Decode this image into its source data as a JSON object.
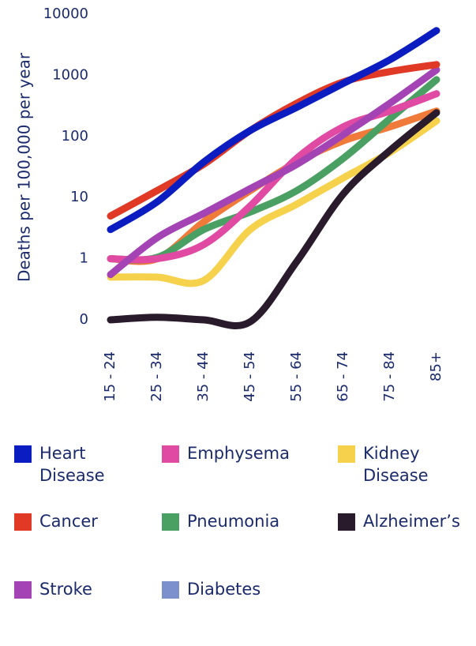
{
  "chart_data": {
    "type": "line",
    "y_label": "Deaths per 100,000 per year",
    "log_scale": true,
    "categories": [
      "15 - 24",
      "25 - 34",
      "35 - 44",
      "45 - 54",
      "55 - 64",
      "65 - 74",
      "75 - 84",
      "85+"
    ],
    "ylim": [
      0.1,
      10000
    ],
    "yticks": [
      {
        "value": 0.1,
        "label": "0"
      },
      1,
      10,
      100,
      1000,
      10000
    ],
    "series": [
      {
        "name": "Heart Disease",
        "color": "#0b1cc0",
        "values": [
          3,
          8.5,
          38,
          125,
          300,
          740,
          1800,
          5400
        ]
      },
      {
        "name": "Emphysema",
        "color": "#e04aa2",
        "values": [
          1,
          1,
          1.7,
          7.3,
          44,
          144,
          260,
          500
        ]
      },
      {
        "name": "Kidney Disease",
        "color": "#f6d24c",
        "values": [
          0.5,
          0.5,
          0.44,
          3,
          7.8,
          21,
          55,
          180
        ]
      },
      {
        "name": "Cancer",
        "color": "#e03a26",
        "values": [
          5,
          13,
          35,
          125,
          350,
          780,
          1150,
          1500
        ]
      },
      {
        "name": "Pneumonia",
        "color": "#4aa062",
        "values": [
          1,
          1.05,
          3,
          5.8,
          13,
          44,
          195,
          850
        ]
      },
      {
        "name": "Alzheimer’s",
        "color": "#2a1b2c",
        "values": [
          0.1,
          0.11,
          0.1,
          0.093,
          0.9,
          11.5,
          59,
          245
        ]
      },
      {
        "name": "Stroke",
        "color": "#a444b4",
        "values": [
          0.55,
          2.2,
          5.5,
          14,
          35,
          107,
          350,
          1230
        ]
      },
      {
        "name": "Diabetes",
        "color": "#f07a3a",
        "legend_color": "#7b90cc",
        "values": [
          1,
          1,
          4,
          13,
          38,
          85,
          144,
          260
        ]
      }
    ]
  }
}
